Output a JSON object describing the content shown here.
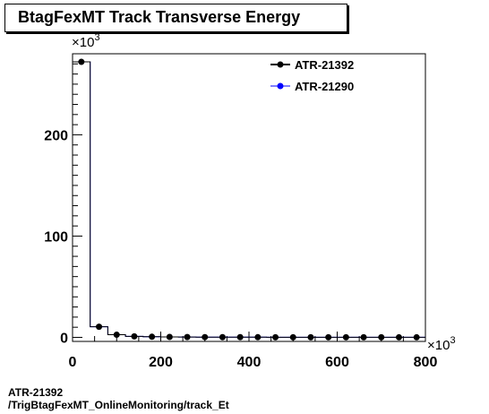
{
  "chart_data": {
    "type": "histogram",
    "title": "BtagFexMT Track Transverse Energy",
    "x_multiplier": "×10",
    "x_multiplier_exp": "3",
    "y_multiplier": "×10",
    "y_multiplier_exp": "3",
    "xlim": [
      0,
      800
    ],
    "ylim": [
      -4,
      280
    ],
    "x_ticks": [
      0,
      200,
      400,
      600,
      800
    ],
    "y_ticks": [
      0,
      100,
      200
    ],
    "bin_edges": [
      0,
      40,
      80,
      120,
      160,
      200,
      240,
      280,
      320,
      360,
      400,
      440,
      480,
      520,
      560,
      600,
      640,
      680,
      720,
      760,
      800
    ],
    "series": [
      {
        "name": "ATR-21392",
        "color": "#000000",
        "style": "markers",
        "values": [
          272,
          10.5,
          2.6,
          1.0,
          0.6,
          0.4,
          0.3,
          0.25,
          0.2,
          0.18,
          0.15,
          0.12,
          0.1,
          0.1,
          0.08,
          0.08,
          0.07,
          0.06,
          0.05,
          0.05
        ]
      },
      {
        "name": "ATR-21290",
        "color": "#0000ff",
        "style": "line",
        "values": [
          272,
          10.5,
          2.6,
          1.0,
          0.6,
          0.4,
          0.3,
          0.25,
          0.2,
          0.18,
          0.15,
          0.12,
          0.1,
          0.1,
          0.08,
          0.08,
          0.07,
          0.06,
          0.05,
          0.05
        ]
      }
    ],
    "legend_position": "top-right"
  },
  "footer": {
    "line1": "ATR-21392",
    "line2": "/TrigBtagFexMT_OnlineMonitoring/track_Et"
  }
}
